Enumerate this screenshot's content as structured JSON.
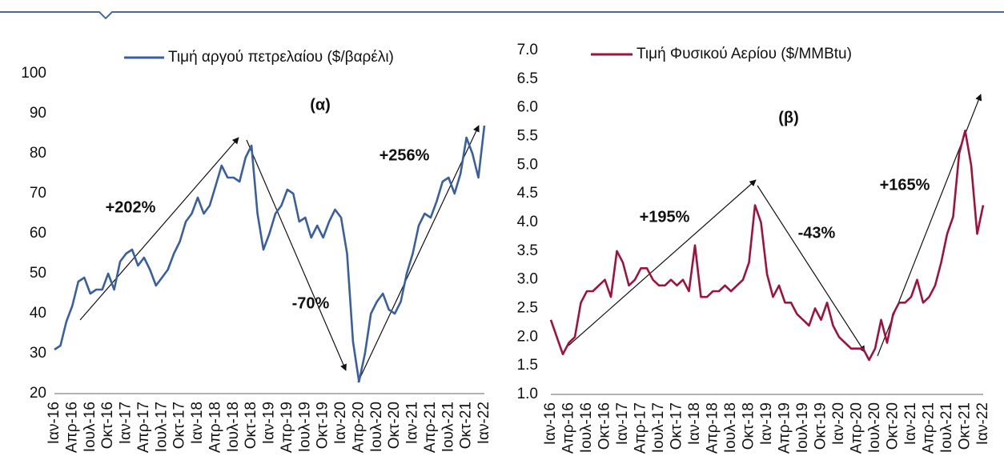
{
  "chart_data": [
    {
      "type": "line",
      "categories": [
        "Ιαν-16",
        null,
        null,
        "Απρ-16",
        null,
        null,
        "Ιουλ-16",
        null,
        null,
        "Οκτ-16",
        null,
        null,
        "Ιαν-17",
        null,
        null,
        "Απρ-17",
        null,
        null,
        "Ιουλ-17",
        null,
        null,
        "Οκτ-17",
        null,
        null,
        "Ιαν-18",
        null,
        null,
        "Απρ-18",
        null,
        null,
        "Ιουλ-18",
        null,
        null,
        "Οκτ-18",
        null,
        null,
        "Ιαν-19",
        null,
        null,
        "Απρ-19",
        null,
        null,
        "Ιουλ-19",
        null,
        null,
        "Οκτ-19",
        null,
        null,
        "Ιαν-20",
        null,
        null,
        "Απρ-20",
        null,
        null,
        "Ιουλ-20",
        null,
        null,
        "Οκτ-20",
        null,
        null,
        "Ιαν-21",
        null,
        null,
        "Απρ-21",
        null,
        null,
        "Ιουλ-21",
        null,
        null,
        "Οκτ-21",
        null,
        null,
        "Ιαν-22"
      ],
      "series": [
        {
          "name": "Τιμή αργού πετρελαίου ($/βαρέλι)",
          "color": "#3a5fa0",
          "values": [
            31,
            32,
            38,
            42,
            48,
            49,
            45,
            46,
            46,
            50,
            46,
            53,
            55,
            56,
            52,
            54,
            51,
            47,
            49,
            51,
            55,
            58,
            63,
            65,
            69,
            65,
            67,
            72,
            77,
            74,
            74,
            73,
            79,
            82,
            65,
            56,
            60,
            65,
            67,
            71,
            70,
            63,
            64,
            59,
            62,
            59,
            63,
            66,
            64,
            55,
            33,
            23,
            30,
            40,
            43,
            45,
            41,
            40,
            43,
            50,
            55,
            62,
            65,
            64,
            68,
            73,
            74,
            70,
            75,
            84,
            80,
            74,
            87
          ]
        }
      ],
      "ylim": [
        20,
        100
      ],
      "yticks": [
        20,
        30,
        40,
        50,
        60,
        70,
        80,
        90,
        100
      ],
      "annotations": [
        "(α)",
        "+202%",
        "-70%",
        "+256%"
      ]
    },
    {
      "type": "line",
      "categories": [
        "Ιαν-16",
        null,
        null,
        "Απρ-16",
        null,
        null,
        "Ιουλ-16",
        null,
        null,
        "Οκτ-16",
        null,
        null,
        "Ιαν-17",
        null,
        null,
        "Απρ-17",
        null,
        null,
        "Ιουλ-17",
        null,
        null,
        "Οκτ-17",
        null,
        null,
        "Ιαν-18",
        null,
        null,
        "Απρ-18",
        null,
        null,
        "Ιουλ-18",
        null,
        null,
        "Οκτ-18",
        null,
        null,
        "Ιαν-19",
        null,
        null,
        "Απρ-19",
        null,
        null,
        "Ιουλ-19",
        null,
        null,
        "Οκτ-19",
        null,
        null,
        "Ιαν-20",
        null,
        null,
        "Απρ-20",
        null,
        null,
        "Ιουλ-20",
        null,
        null,
        "Οκτ-20",
        null,
        null,
        "Ιαν-21",
        null,
        null,
        "Απρ-21",
        null,
        null,
        "Ιουλ-21",
        null,
        null,
        "Οκτ-21",
        null,
        null,
        "Ιαν-22"
      ],
      "series": [
        {
          "name": "Τιμή Φυσικού Αερίου ($/MMBtu)",
          "color": "#a0123c",
          "values": [
            2.3,
            2.0,
            1.7,
            1.9,
            2.0,
            2.6,
            2.8,
            2.8,
            2.9,
            3.0,
            2.7,
            3.5,
            3.3,
            2.9,
            3.0,
            3.2,
            3.2,
            3.0,
            2.9,
            2.9,
            3.0,
            2.9,
            3.0,
            2.8,
            3.6,
            2.7,
            2.7,
            2.8,
            2.8,
            2.9,
            2.8,
            2.9,
            3.0,
            3.3,
            4.3,
            4.0,
            3.1,
            2.7,
            2.9,
            2.6,
            2.6,
            2.4,
            2.3,
            2.2,
            2.5,
            2.3,
            2.6,
            2.2,
            2.0,
            1.9,
            1.8,
            1.8,
            1.8,
            1.6,
            1.8,
            2.3,
            1.9,
            2.4,
            2.6,
            2.6,
            2.7,
            3.0,
            2.6,
            2.7,
            2.9,
            3.3,
            3.8,
            4.1,
            5.2,
            5.6,
            5.0,
            3.8,
            4.3
          ]
        }
      ],
      "ylim": [
        1,
        7
      ],
      "yticks": [
        {
          "value": 1,
          "label": "1.0"
        },
        {
          "value": 1.5,
          "label": "1.5"
        },
        {
          "value": 2,
          "label": "2.0"
        },
        {
          "value": 2.5,
          "label": "2.5"
        },
        {
          "value": 3,
          "label": "3.0"
        },
        {
          "value": 3.5,
          "label": "3.5"
        },
        {
          "value": 4,
          "label": "4.0"
        },
        {
          "value": 4.5,
          "label": "4.5"
        },
        {
          "value": 5,
          "label": "5.0"
        },
        {
          "value": 5.5,
          "label": "5.5"
        },
        {
          "value": 6,
          "label": "6.0"
        },
        {
          "value": 6.5,
          "label": "6.5"
        },
        {
          "value": 7,
          "label": "7.0"
        }
      ],
      "annotations": [
        "(β)",
        "+195%",
        "-43%",
        "+165%"
      ]
    }
  ]
}
